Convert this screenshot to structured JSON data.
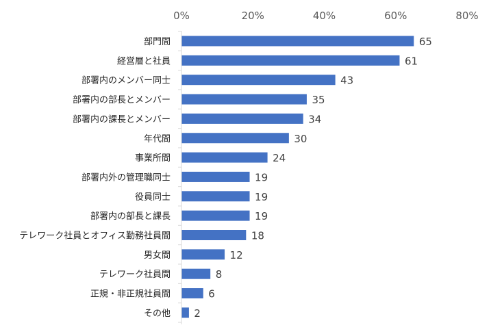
{
  "chart_data": {
    "type": "bar",
    "orientation": "horizontal",
    "categories": [
      "部門間",
      "経営層と社員",
      "部署内のメンバー同士",
      "部署内の部長とメンバー",
      "部署内の課長とメンバー",
      "年代間",
      "事業所間",
      "部署内外の管理職同士",
      "役員同士",
      "部署内の部長と課長",
      "テレワーク社員とオフィス勤務社員間",
      "男女間",
      "テレワーク社員間",
      "正規・非正規社員間",
      "その他"
    ],
    "values": [
      65,
      61,
      43,
      35,
      34,
      30,
      24,
      19,
      19,
      19,
      18,
      12,
      8,
      6,
      2
    ],
    "xlim": [
      0,
      80
    ],
    "xticks": [
      "0%",
      "20%",
      "40%",
      "60%",
      "80%"
    ],
    "xtick_values": [
      0,
      20,
      40,
      60,
      80
    ],
    "x_axis_position": "top",
    "grid": false,
    "bar_color": "#4472c4"
  }
}
